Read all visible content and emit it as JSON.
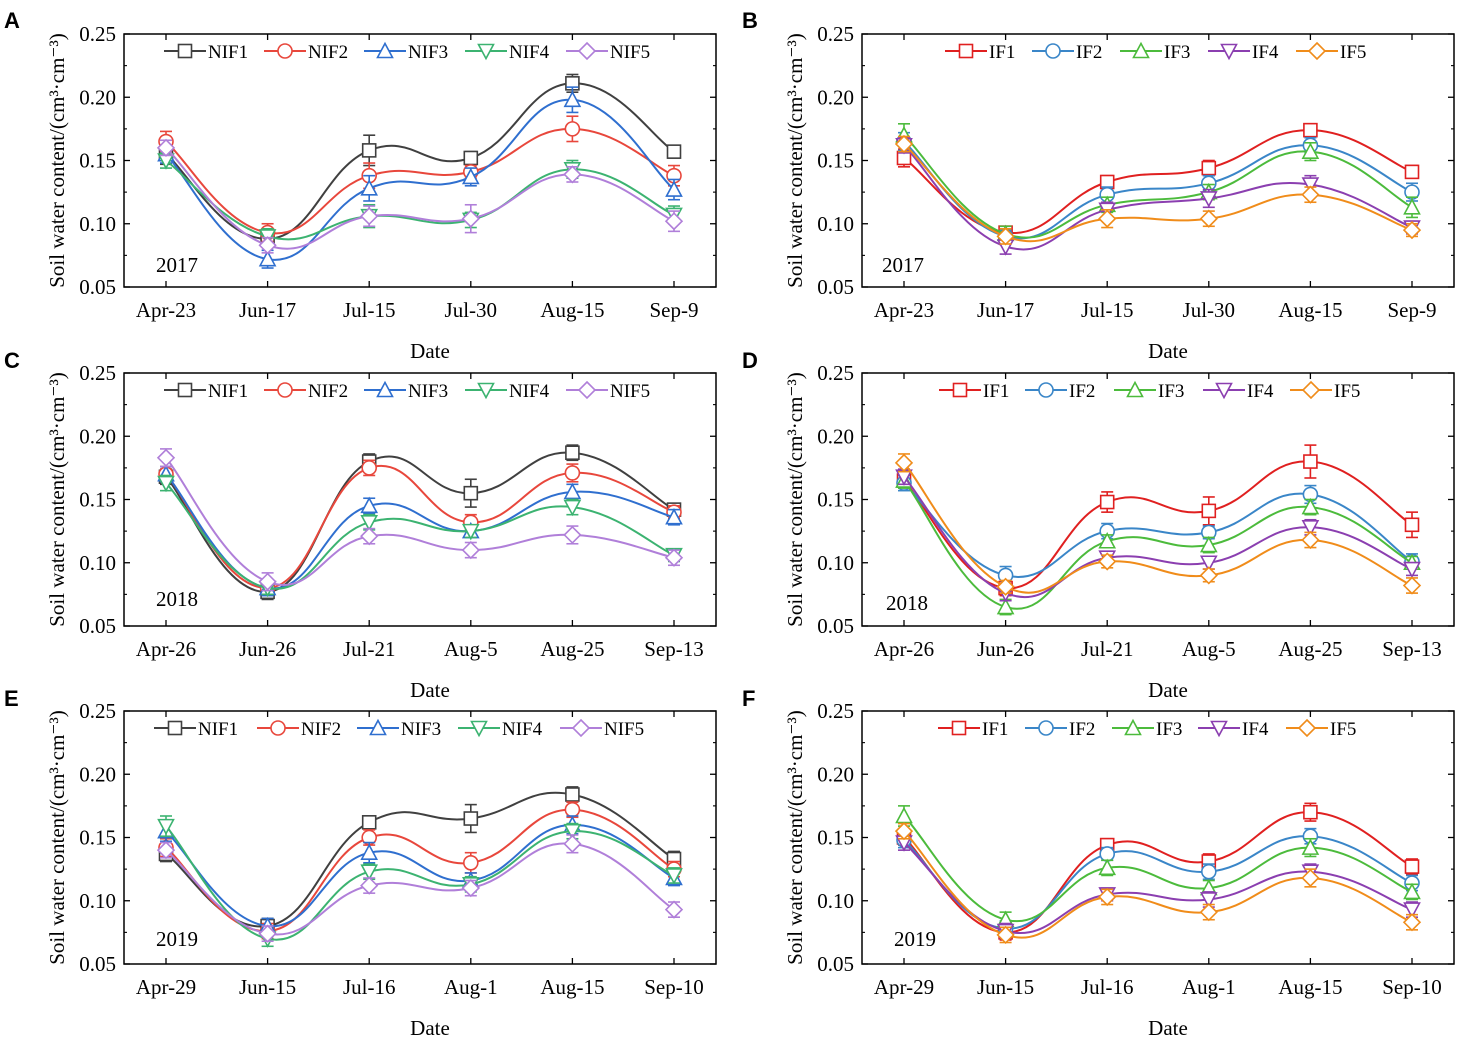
{
  "figure": {
    "styles": {
      "NIF1": {
        "color": "#404040",
        "marker": "square"
      },
      "NIF2": {
        "color": "#e8473c",
        "marker": "circle"
      },
      "NIF3": {
        "color": "#2f6fcf",
        "marker": "triangle-up"
      },
      "NIF4": {
        "color": "#3cb371",
        "marker": "triangle-down"
      },
      "NIF5": {
        "color": "#b07fd9",
        "marker": "diamond"
      },
      "IF1": {
        "color": "#e02020",
        "marker": "square"
      },
      "IF2": {
        "color": "#3a86c8",
        "marker": "circle"
      },
      "IF3": {
        "color": "#4cbb3c",
        "marker": "triangle-up"
      },
      "IF4": {
        "color": "#8b3fb0",
        "marker": "triangle-down"
      },
      "IF5": {
        "color": "#f08c1a",
        "marker": "diamond"
      }
    }
  },
  "chart_data": [
    {
      "panel": "A",
      "type": "line",
      "year": "2017",
      "xlabel": "Date",
      "ylabel": "Soil water content/(cm³·cm⁻³)",
      "ylim": [
        0.05,
        0.25
      ],
      "yticks": [
        "0.05",
        "0.10",
        "0.15",
        "0.20",
        "0.25"
      ],
      "categories": [
        "Apr-23",
        "Jun-17",
        "Jul-15",
        "Jul-30",
        "Aug-15",
        "Sep-9"
      ],
      "series": [
        {
          "name": "NIF1",
          "values": [
            0.155,
            0.088,
            0.158,
            0.152,
            0.211,
            0.157
          ],
          "errors": [
            0.008,
            0.006,
            0.012,
            0.005,
            0.007,
            0.005
          ]
        },
        {
          "name": "NIF2",
          "values": [
            0.165,
            0.093,
            0.138,
            0.141,
            0.175,
            0.138
          ],
          "errors": [
            0.008,
            0.007,
            0.01,
            0.005,
            0.01,
            0.008
          ]
        },
        {
          "name": "NIF3",
          "values": [
            0.155,
            0.072,
            0.128,
            0.137,
            0.198,
            0.127
          ],
          "errors": [
            0.007,
            0.007,
            0.01,
            0.007,
            0.01,
            0.008
          ]
        },
        {
          "name": "NIF4",
          "values": [
            0.15,
            0.09,
            0.106,
            0.103,
            0.143,
            0.107
          ],
          "errors": [
            0.006,
            0.006,
            0.009,
            0.006,
            0.007,
            0.007
          ]
        },
        {
          "name": "NIF5",
          "values": [
            0.16,
            0.083,
            0.106,
            0.104,
            0.139,
            0.102
          ],
          "errors": [
            0.006,
            0.006,
            0.008,
            0.011,
            0.006,
            0.008
          ]
        }
      ]
    },
    {
      "panel": "B",
      "type": "line",
      "year": "2017",
      "xlabel": "Date",
      "ylabel": "Soil water content/(cm³·cm⁻³)",
      "ylim": [
        0.05,
        0.25
      ],
      "yticks": [
        "0.05",
        "0.10",
        "0.15",
        "0.20",
        "0.25"
      ],
      "categories": [
        "Apr-23",
        "Jun-17",
        "Jul-15",
        "Jul-30",
        "Aug-15",
        "Sep-9"
      ],
      "series": [
        {
          "name": "IF1",
          "values": [
            0.152,
            0.093,
            0.133,
            0.144,
            0.174,
            0.141
          ],
          "errors": [
            0.007,
            0.005,
            0.005,
            0.006,
            0.005,
            0.005
          ]
        },
        {
          "name": "IF2",
          "values": [
            0.165,
            0.09,
            0.123,
            0.132,
            0.162,
            0.125
          ],
          "errors": [
            0.007,
            0.005,
            0.006,
            0.006,
            0.006,
            0.007
          ]
        },
        {
          "name": "IF3",
          "values": [
            0.17,
            0.092,
            0.115,
            0.125,
            0.157,
            0.113
          ],
          "errors": [
            0.009,
            0.006,
            0.006,
            0.006,
            0.007,
            0.008
          ]
        },
        {
          "name": "IF4",
          "values": [
            0.162,
            0.082,
            0.111,
            0.12,
            0.131,
            0.097
          ],
          "errors": [
            0.006,
            0.006,
            0.006,
            0.007,
            0.007,
            0.005
          ]
        },
        {
          "name": "IF5",
          "values": [
            0.163,
            0.09,
            0.104,
            0.104,
            0.123,
            0.095
          ],
          "errors": [
            0.006,
            0.006,
            0.007,
            0.006,
            0.006,
            0.005
          ]
        }
      ]
    },
    {
      "panel": "C",
      "type": "line",
      "year": "2018",
      "xlabel": "Date",
      "ylabel": "Soil water content/(cm³·cm⁻³)",
      "ylim": [
        0.05,
        0.25
      ],
      "yticks": [
        "0.05",
        "0.10",
        "0.15",
        "0.20",
        "0.25"
      ],
      "categories": [
        "Apr-26",
        "Jun-26",
        "Jul-21",
        "Aug-5",
        "Aug-25",
        "Sep-13"
      ],
      "series": [
        {
          "name": "NIF1",
          "values": [
            0.168,
            0.077,
            0.18,
            0.155,
            0.187,
            0.142
          ],
          "errors": [
            0.006,
            0.006,
            0.006,
            0.011,
            0.006,
            0.005
          ]
        },
        {
          "name": "NIF2",
          "values": [
            0.17,
            0.08,
            0.175,
            0.132,
            0.171,
            0.14
          ],
          "errors": [
            0.006,
            0.005,
            0.006,
            0.006,
            0.007,
            0.005
          ]
        },
        {
          "name": "NIF3",
          "values": [
            0.17,
            0.08,
            0.145,
            0.125,
            0.156,
            0.136
          ],
          "errors": [
            0.006,
            0.006,
            0.006,
            0.005,
            0.006,
            0.006
          ]
        },
        {
          "name": "NIF4",
          "values": [
            0.163,
            0.08,
            0.132,
            0.125,
            0.144,
            0.106
          ],
          "errors": [
            0.006,
            0.005,
            0.006,
            0.005,
            0.006,
            0.005
          ]
        },
        {
          "name": "NIF5",
          "values": [
            0.183,
            0.085,
            0.121,
            0.11,
            0.122,
            0.104
          ],
          "errors": [
            0.007,
            0.007,
            0.006,
            0.006,
            0.007,
            0.006
          ]
        }
      ]
    },
    {
      "panel": "D",
      "type": "line",
      "year": "2018",
      "xlabel": "Date",
      "ylabel": "Soil water content/(cm³·cm⁻³)",
      "ylim": [
        0.05,
        0.25
      ],
      "yticks": [
        "0.05",
        "0.10",
        "0.15",
        "0.20",
        "0.25"
      ],
      "categories": [
        "Apr-26",
        "Jun-26",
        "Jul-21",
        "Aug-5",
        "Aug-25",
        "Sep-13"
      ],
      "series": [
        {
          "name": "IF1",
          "values": [
            0.165,
            0.08,
            0.148,
            0.141,
            0.18,
            0.13
          ],
          "errors": [
            0.006,
            0.006,
            0.008,
            0.011,
            0.013,
            0.01
          ]
        },
        {
          "name": "IF2",
          "values": [
            0.163,
            0.09,
            0.125,
            0.124,
            0.154,
            0.101
          ],
          "errors": [
            0.006,
            0.007,
            0.006,
            0.005,
            0.007,
            0.006
          ]
        },
        {
          "name": "IF3",
          "values": [
            0.165,
            0.065,
            0.117,
            0.114,
            0.144,
            0.1
          ],
          "errors": [
            0.006,
            0.006,
            0.005,
            0.006,
            0.006,
            0.005
          ]
        },
        {
          "name": "IF4",
          "values": [
            0.168,
            0.076,
            0.104,
            0.1,
            0.128,
            0.095
          ],
          "errors": [
            0.006,
            0.006,
            0.005,
            0.005,
            0.006,
            0.005
          ]
        },
        {
          "name": "IF5",
          "values": [
            0.179,
            0.081,
            0.101,
            0.09,
            0.118,
            0.082
          ],
          "errors": [
            0.007,
            0.005,
            0.005,
            0.005,
            0.006,
            0.006
          ]
        }
      ]
    },
    {
      "panel": "E",
      "type": "line",
      "year": "2019",
      "xlabel": "Date",
      "ylabel": "Soil water content/(cm³·cm⁻³)",
      "ylim": [
        0.05,
        0.25
      ],
      "yticks": [
        "0.05",
        "0.10",
        "0.15",
        "0.20",
        "0.25"
      ],
      "categories": [
        "Apr-29",
        "Jun-15",
        "Jul-16",
        "Aug-1",
        "Aug-15",
        "Sep-10"
      ],
      "series": [
        {
          "name": "NIF1",
          "values": [
            0.137,
            0.08,
            0.162,
            0.165,
            0.184,
            0.133
          ],
          "errors": [
            0.006,
            0.006,
            0.005,
            0.011,
            0.006,
            0.006
          ]
        },
        {
          "name": "NIF2",
          "values": [
            0.142,
            0.076,
            0.15,
            0.13,
            0.172,
            0.125
          ],
          "errors": [
            0.007,
            0.006,
            0.006,
            0.008,
            0.006,
            0.006
          ]
        },
        {
          "name": "NIF3",
          "values": [
            0.155,
            0.08,
            0.138,
            0.116,
            0.16,
            0.118
          ],
          "errors": [
            0.008,
            0.006,
            0.008,
            0.006,
            0.007,
            0.006
          ]
        },
        {
          "name": "NIF4",
          "values": [
            0.159,
            0.07,
            0.123,
            0.113,
            0.155,
            0.12
          ],
          "errors": [
            0.008,
            0.006,
            0.006,
            0.006,
            0.006,
            0.006
          ]
        },
        {
          "name": "NIF5",
          "values": [
            0.14,
            0.074,
            0.112,
            0.11,
            0.145,
            0.093
          ],
          "errors": [
            0.006,
            0.006,
            0.006,
            0.006,
            0.007,
            0.006
          ]
        }
      ]
    },
    {
      "panel": "F",
      "type": "line",
      "year": "2019",
      "xlabel": "Date",
      "ylabel": "Soil water content/(cm³·cm⁻³)",
      "ylim": [
        0.05,
        0.25
      ],
      "yticks": [
        "0.05",
        "0.10",
        "0.15",
        "0.20",
        "0.25"
      ],
      "categories": [
        "Apr-29",
        "Jun-15",
        "Jul-16",
        "Aug-1",
        "Aug-15",
        "Sep-10"
      ],
      "series": [
        {
          "name": "IF1",
          "values": [
            0.15,
            0.075,
            0.144,
            0.131,
            0.17,
            0.127
          ],
          "errors": [
            0.006,
            0.006,
            0.005,
            0.006,
            0.007,
            0.006
          ]
        },
        {
          "name": "IF2",
          "values": [
            0.148,
            0.078,
            0.137,
            0.123,
            0.151,
            0.114
          ],
          "errors": [
            0.006,
            0.006,
            0.005,
            0.006,
            0.006,
            0.006
          ]
        },
        {
          "name": "IF3",
          "values": [
            0.167,
            0.085,
            0.126,
            0.11,
            0.142,
            0.107
          ],
          "errors": [
            0.008,
            0.006,
            0.006,
            0.006,
            0.007,
            0.006
          ]
        },
        {
          "name": "IF4",
          "values": [
            0.146,
            0.076,
            0.105,
            0.101,
            0.123,
            0.093
          ],
          "errors": [
            0.006,
            0.006,
            0.005,
            0.006,
            0.006,
            0.006
          ]
        },
        {
          "name": "IF5",
          "values": [
            0.155,
            0.073,
            0.103,
            0.091,
            0.118,
            0.083
          ],
          "errors": [
            0.006,
            0.006,
            0.006,
            0.006,
            0.007,
            0.006
          ]
        }
      ]
    }
  ]
}
